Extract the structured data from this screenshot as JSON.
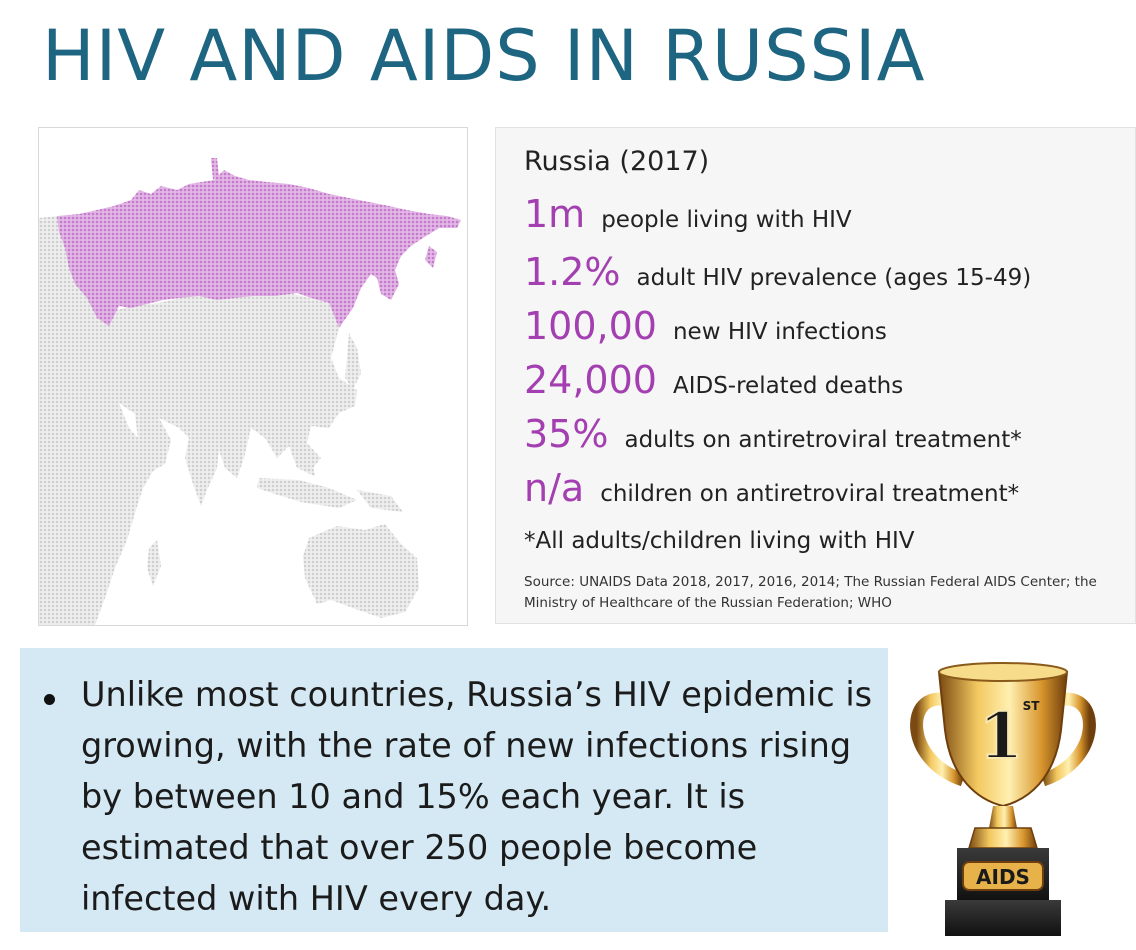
{
  "title": "HIV AND AIDS IN RUSSIA",
  "stats": {
    "heading": "Russia (2017)",
    "rows": [
      {
        "value": "1m",
        "label": "people living with HIV"
      },
      {
        "value": "1.2%",
        "label": "adult HIV prevalence (ages 15-49)"
      },
      {
        "value": "100,00",
        "label": "new HIV infections"
      },
      {
        "value": "24,000",
        "label": "AIDS-related deaths"
      },
      {
        "value": "35%",
        "label": "adults on antiretroviral treatment*"
      },
      {
        "value": "n/a",
        "label": "children on antiretroviral treatment*"
      }
    ],
    "note": "*All adults/children living with HIV",
    "source": "Source: UNAIDS Data 2018, 2017, 2016, 2014; The Russian Federal AIDS Center; the Ministry of Healthcare of the Russian Federation; WHO"
  },
  "bullet": "Unlike most countries, Russia’s HIV epidemic is growing, with the rate of new infections rising by between 10 and 15% each year. It is estimated that over 250 people become infected with HIV every day.",
  "trophy": {
    "rank": "1",
    "rank_suffix": "ST",
    "plaque": "AIDS"
  },
  "colors": {
    "title": "#1e6582",
    "highlight": "#a33fb1",
    "russia_fill": "#d49ad8",
    "land_fill": "#e0e0e0",
    "text_box_bg": "#d5e9f4"
  }
}
